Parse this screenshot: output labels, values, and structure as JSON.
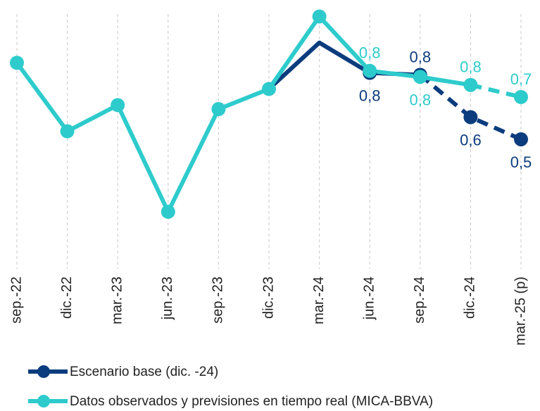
{
  "chart_data": {
    "type": "line",
    "categories": [
      "sep.-22",
      "dic.-22",
      "mar.-23",
      "jun.-23",
      "sep.-23",
      "dic.-23",
      "mar.-24",
      "jun.-24",
      "sep.-24",
      "dic.-24",
      "mar.-25 (p)"
    ],
    "series": [
      {
        "name": "Escenario base (dic. -24)",
        "color": "#0b3c7d",
        "values": [
          null,
          null,
          null,
          null,
          null,
          0.75,
          0.98,
          0.83,
          0.82,
          0.61,
          0.5
        ],
        "value_labels": [
          null,
          null,
          null,
          null,
          null,
          null,
          null,
          "0,8",
          "0,8",
          "0,6",
          "0,5"
        ],
        "dashed_from": 8,
        "markers_from": 7
      },
      {
        "name": "Datos observados y previsiones en tiempo real (MICA-BBVA)",
        "color": "#2ecbcc",
        "values": [
          0.88,
          0.54,
          0.67,
          0.14,
          0.65,
          0.75,
          1.11,
          0.84,
          0.81,
          0.77,
          0.71
        ],
        "value_labels": [
          null,
          null,
          null,
          null,
          null,
          null,
          null,
          "0,8",
          "0,8",
          "0,8",
          "0,7"
        ],
        "dashed_from": 9,
        "markers_from": 0
      }
    ],
    "ylim": [
      0,
      1.15
    ],
    "grid": true
  }
}
